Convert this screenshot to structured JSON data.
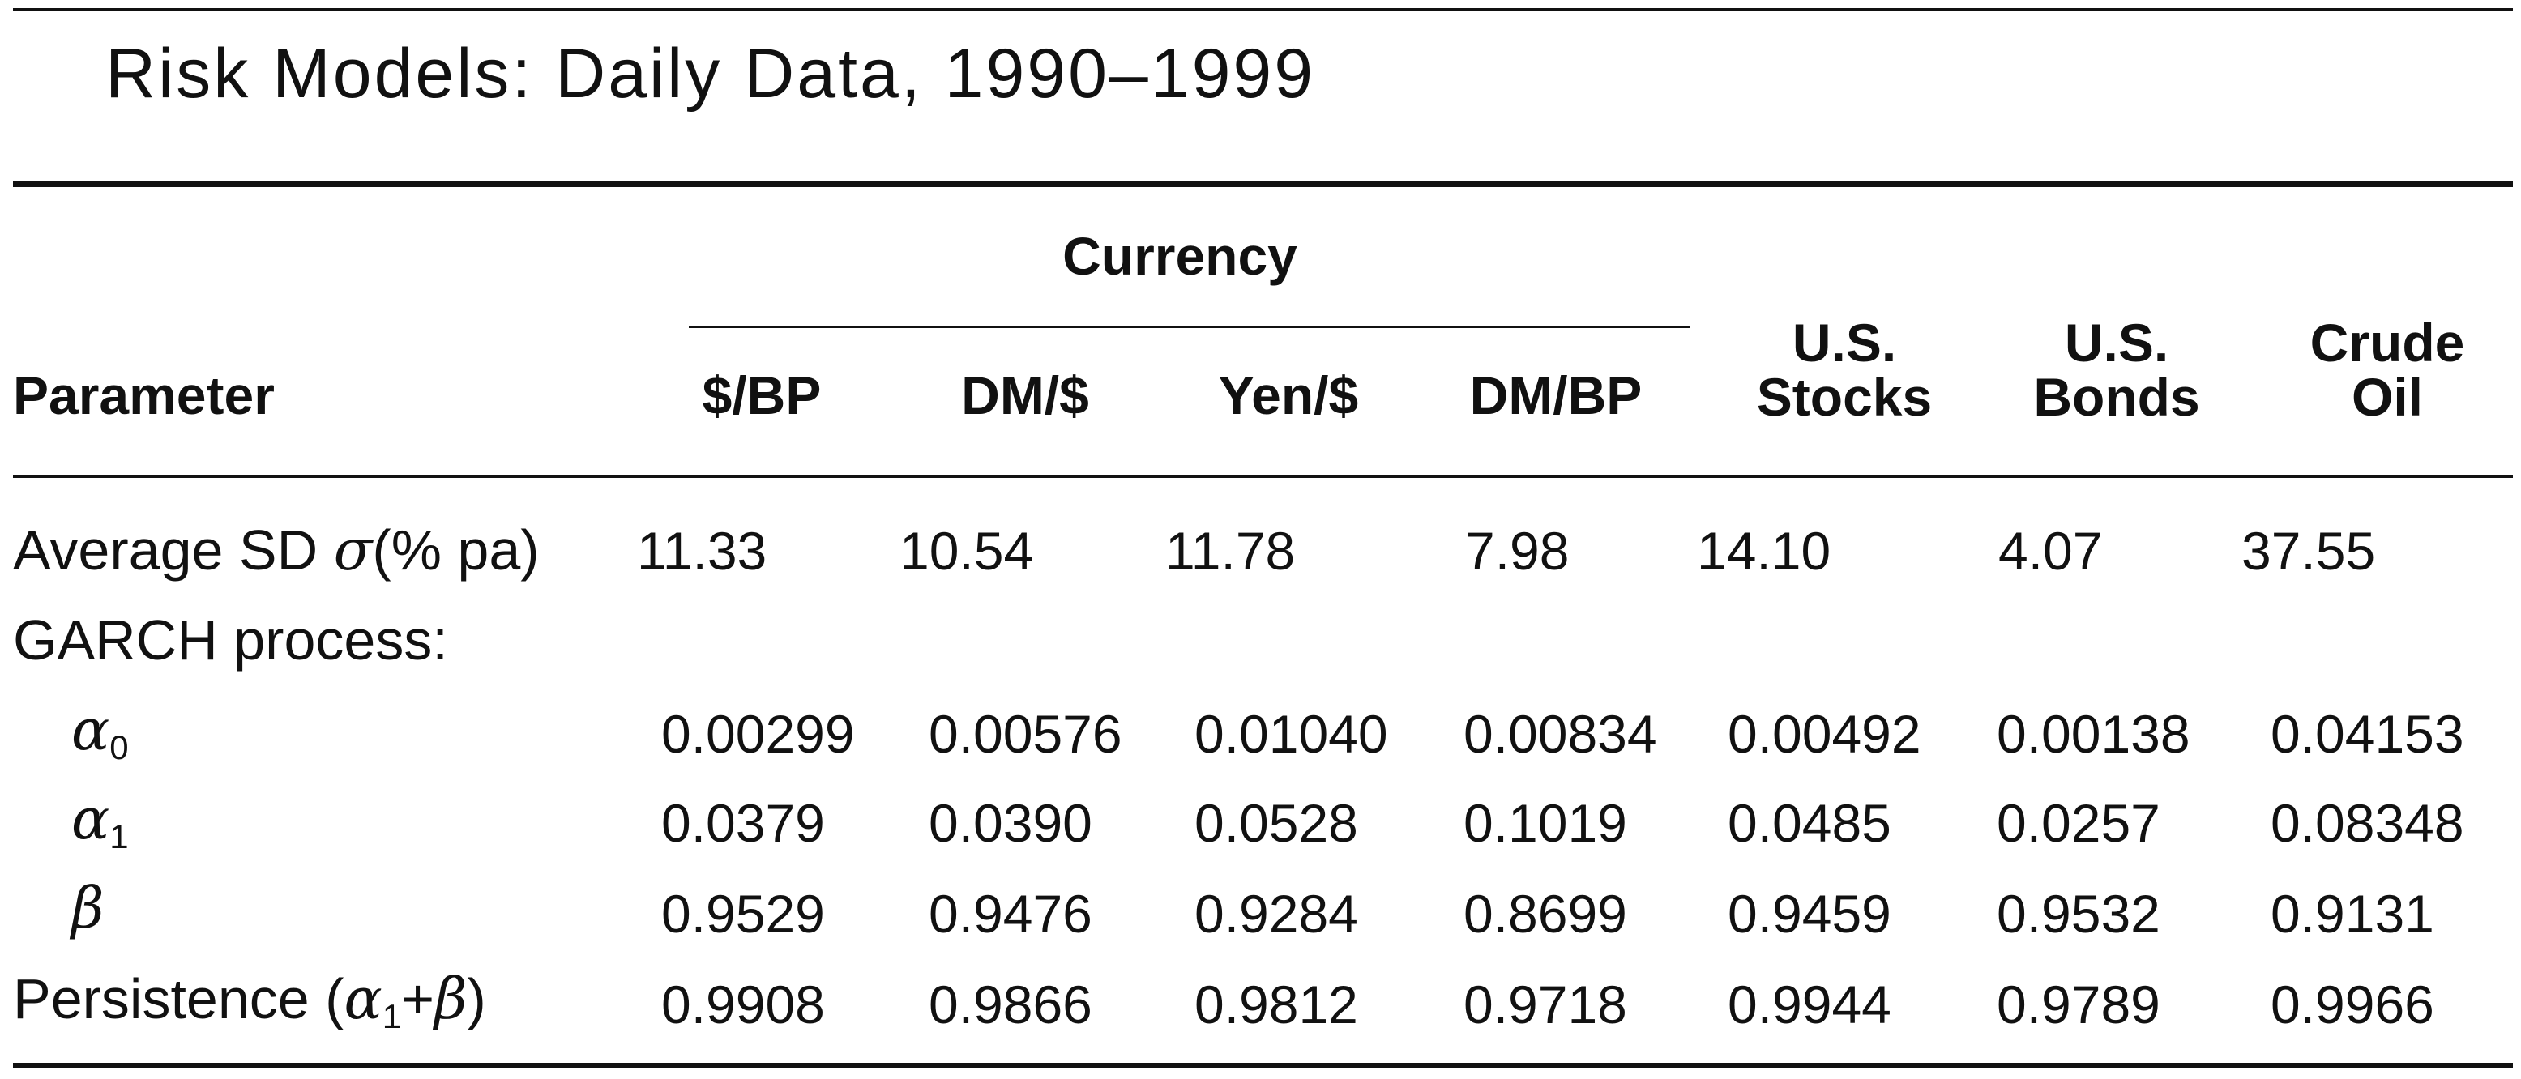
{
  "title": "Risk Models: Daily Data, 1990–1999",
  "table": {
    "group_header": "Currency",
    "param_header": "Parameter",
    "columns": [
      {
        "line1": "$/BP",
        "line2": ""
      },
      {
        "line1": "DM/$",
        "line2": ""
      },
      {
        "line1": "Yen/$",
        "line2": ""
      },
      {
        "line1": "DM/BP",
        "line2": ""
      },
      {
        "line1": "U.S.",
        "line2": "Stocks"
      },
      {
        "line1": "U.S.",
        "line2": "Bonds"
      },
      {
        "line1": "Crude",
        "line2": "Oil"
      }
    ],
    "avg_sd": {
      "label_prefix": "Average SD ",
      "symbol": "σ",
      "label_suffix": "(% pa)",
      "values": [
        "11.33",
        "10.54",
        "11.78",
        "7.98",
        "14.10",
        "4.07",
        "37.55"
      ]
    },
    "garch_label": "GARCH process:",
    "alpha0": {
      "symbol": "α",
      "sub": "0",
      "values": [
        "0.00299",
        "0.00576",
        "0.01040",
        "0.00834",
        "0.00492",
        "0.00138",
        "0.04153"
      ]
    },
    "alpha1": {
      "symbol": "α",
      "sub": "1",
      "values": [
        "0.0379",
        "0.0390",
        "0.0528",
        "0.1019",
        "0.0485",
        "0.0257",
        "0.08348"
      ]
    },
    "beta": {
      "symbol": "β",
      "values": [
        "0.9529",
        "0.9476",
        "0.9284",
        "0.8699",
        "0.9459",
        "0.9532",
        "0.9131"
      ]
    },
    "persistence": {
      "label_prefix": "Persistence (",
      "alpha": "α",
      "sub": "1",
      "plus": "+",
      "beta": "β",
      "label_suffix": ")",
      "values": [
        "0.9908",
        "0.9866",
        "0.9812",
        "0.9718",
        "0.9944",
        "0.9789",
        "0.9966"
      ]
    }
  }
}
